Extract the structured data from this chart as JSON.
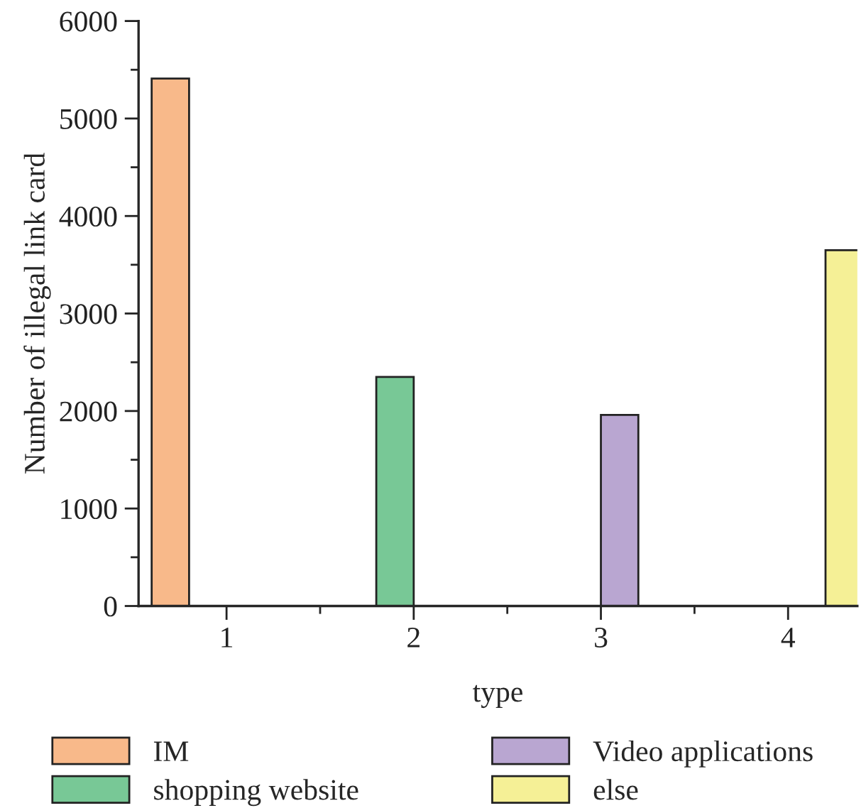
{
  "chart_data": {
    "type": "bar",
    "xlabel": "type",
    "ylabel": "Number of illegal link card",
    "categories": [
      "1",
      "2",
      "3",
      "4"
    ],
    "series": [
      {
        "name": "IM",
        "color": "#f8b98a",
        "values": [
          5410,
          null,
          null,
          null
        ]
      },
      {
        "name": "shopping website",
        "color": "#78c896",
        "values": [
          null,
          2350,
          null,
          null
        ]
      },
      {
        "name": "Video applications",
        "color": "#b9a6d1",
        "values": [
          null,
          null,
          1960,
          null
        ]
      },
      {
        "name": "else",
        "color": "#f5f096",
        "values": [
          null,
          null,
          null,
          3650
        ]
      }
    ],
    "ylim": [
      0,
      6000
    ],
    "yticks": [
      0,
      1000,
      2000,
      3000,
      4000,
      5000,
      6000
    ],
    "grid": false,
    "legend": "bottom"
  }
}
